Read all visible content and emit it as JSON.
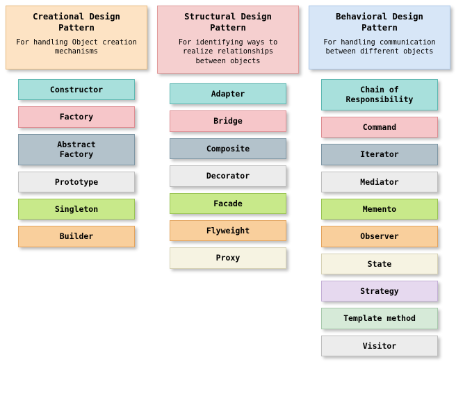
{
  "palette": {
    "teal": {
      "fill": "#a8e0dc",
      "border": "#5eb8b2"
    },
    "pink": {
      "fill": "#f6c6c9",
      "border": "#dd8e93"
    },
    "slate": {
      "fill": "#b3c2cb",
      "border": "#7f97a5"
    },
    "light": {
      "fill": "#ececec",
      "border": "#bfbfbf"
    },
    "lime": {
      "fill": "#c8e98a",
      "border": "#9ac455"
    },
    "orange": {
      "fill": "#f9cf9c",
      "border": "#e3a45e"
    },
    "cream": {
      "fill": "#f6f3e2",
      "border": "#d7d2b6"
    },
    "lilac": {
      "fill": "#e6d9ef",
      "border": "#c4b0d6"
    },
    "mint": {
      "fill": "#d6ead8",
      "border": "#a9c9ad"
    },
    "peach": {
      "fill": "#fde3c4",
      "border": "#e8b97a"
    },
    "rose": {
      "fill": "#f5cfcf",
      "border": "#e09a9a"
    },
    "sky": {
      "fill": "#d7e6f7",
      "border": "#a7c4e6"
    }
  },
  "columns": [
    {
      "header": {
        "title": "Creational Design\nPattern",
        "desc": "For handling Object creation\nmechanisms",
        "color": "peach",
        "min_height": 92
      },
      "items": [
        {
          "label": "Constructor",
          "color": "teal"
        },
        {
          "label": "Factory",
          "color": "pink"
        },
        {
          "label": "Abstract\nFactory",
          "color": "slate"
        },
        {
          "label": "Prototype",
          "color": "light"
        },
        {
          "label": "Singleton",
          "color": "lime"
        },
        {
          "label": "Builder",
          "color": "orange"
        }
      ]
    },
    {
      "header": {
        "title": "Structural Design\nPattern",
        "desc": "For identifying ways to\nrealize relationships\nbetween objects",
        "color": "rose",
        "min_height": 92
      },
      "items": [
        {
          "label": "Adapter",
          "color": "teal"
        },
        {
          "label": "Bridge",
          "color": "pink"
        },
        {
          "label": "Composite",
          "color": "slate"
        },
        {
          "label": "Decorator",
          "color": "light"
        },
        {
          "label": "Facade",
          "color": "lime"
        },
        {
          "label": "Flyweight",
          "color": "orange"
        },
        {
          "label": "Proxy",
          "color": "cream"
        }
      ]
    },
    {
      "header": {
        "title": "Behavioral Design\nPattern",
        "desc": "For handling communication\nbetween different objects",
        "color": "sky",
        "min_height": 92
      },
      "items": [
        {
          "label": "Chain of Responsibility",
          "color": "teal"
        },
        {
          "label": "Command",
          "color": "pink"
        },
        {
          "label": "Iterator",
          "color": "slate"
        },
        {
          "label": "Mediator",
          "color": "light"
        },
        {
          "label": "Memento",
          "color": "lime"
        },
        {
          "label": "Observer",
          "color": "orange"
        },
        {
          "label": "State",
          "color": "cream"
        },
        {
          "label": "Strategy",
          "color": "lilac"
        },
        {
          "label": "Template method",
          "color": "mint"
        },
        {
          "label": "Visitor",
          "color": "light"
        }
      ]
    }
  ]
}
